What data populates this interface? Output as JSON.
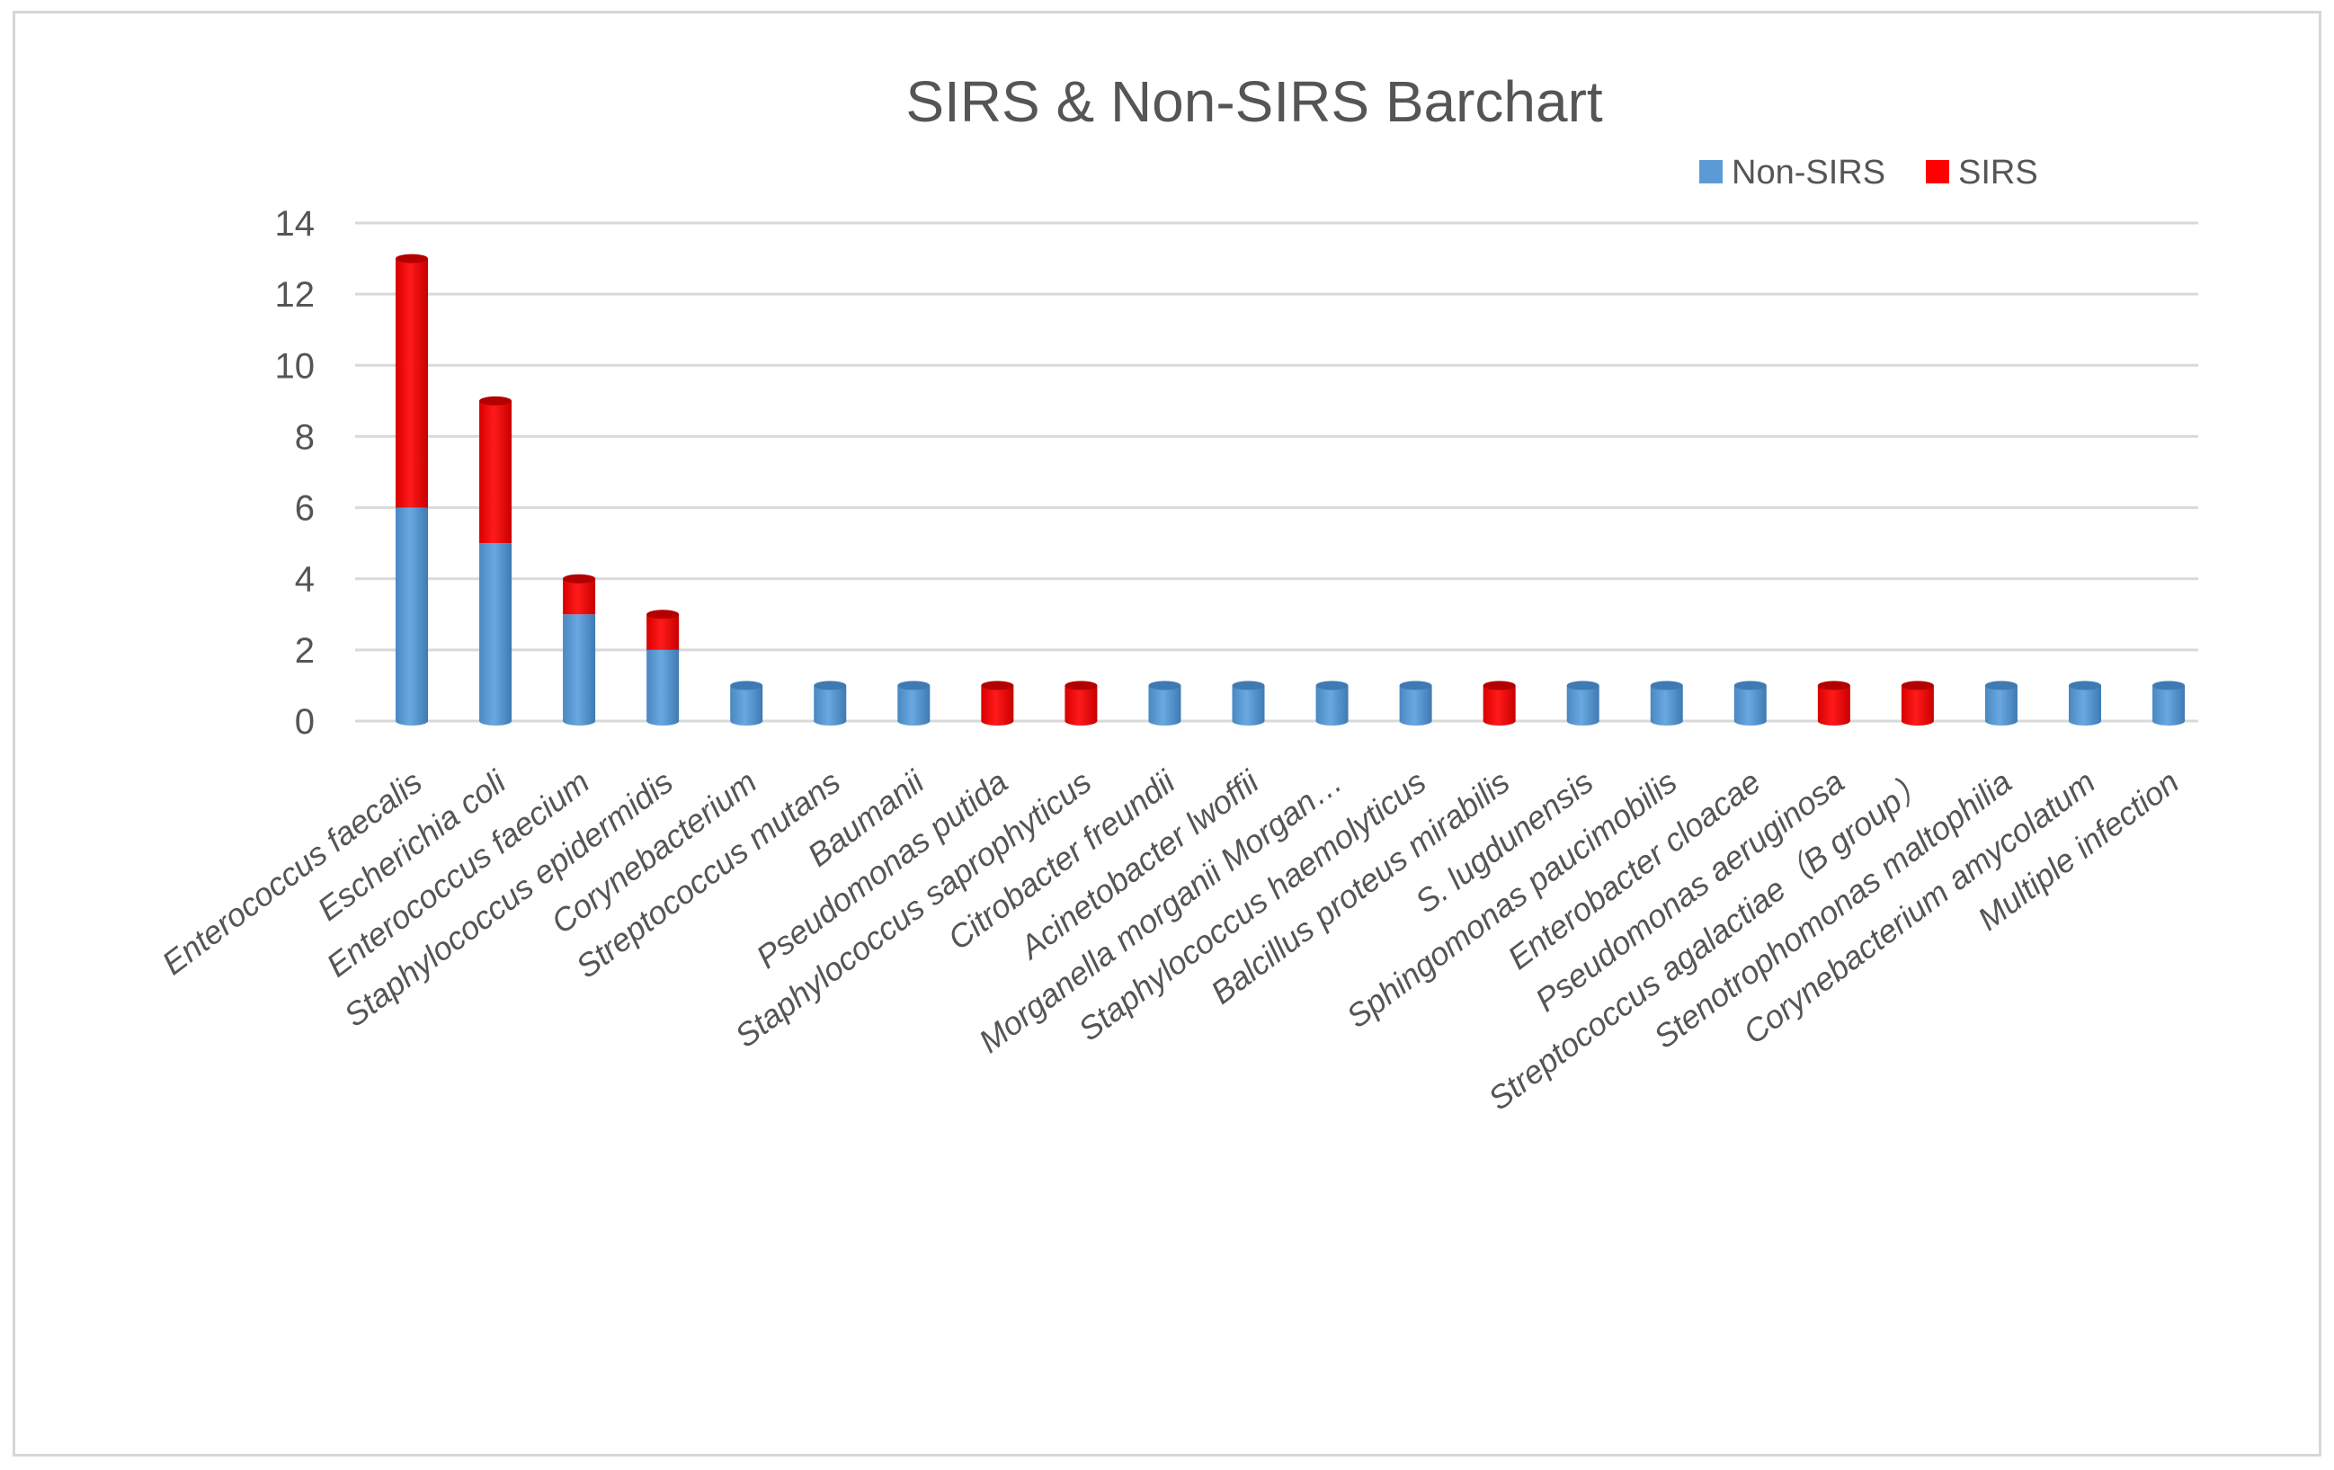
{
  "chart_data": {
    "type": "bar",
    "stacked": true,
    "title": "SIRS & Non-SIRS Barchart",
    "xlabel": "",
    "ylabel": "",
    "ylim": [
      0,
      14
    ],
    "yticks": [
      "0",
      "2",
      "4",
      "6",
      "8",
      "10",
      "12",
      "14"
    ],
    "grid": true,
    "legend_position": "top-right",
    "categories": [
      "Enterococcus faecalis",
      "Escherichia coli",
      "Enterococcus faecium",
      "Staphylococcus epidermidis",
      "Corynebacterium",
      "Streptococcus mutans",
      "Baumanii",
      "Pseudomonas putida",
      "Staphylococcus saprophyticus",
      "Citrobacter freundii",
      "Acinetobacter lwoffii",
      "Morganella morganii Morgan…",
      "Staphylococcus haemolyticus",
      "Balcillus proteus mirabilis",
      "S. lugdunensis",
      "Sphingomonas paucimobilis",
      "Enterobacter cloacae",
      "Pseudomonas aeruginosa",
      "Streptococcus agalactiae（B group）",
      "Stenotrophomonas maltophilia",
      "Corynebacterium amycolatum",
      "Multiple infection"
    ],
    "series": [
      {
        "name": "Non-SIRS",
        "color": "#5b9bd5",
        "values": [
          6,
          5,
          3,
          2,
          1,
          1,
          1,
          0,
          0,
          1,
          1,
          1,
          1,
          0,
          1,
          1,
          1,
          0,
          0,
          1,
          1,
          1
        ]
      },
      {
        "name": "SIRS",
        "color": "#ff0000",
        "values": [
          7,
          4,
          1,
          1,
          0,
          0,
          0,
          1,
          1,
          0,
          0,
          0,
          0,
          1,
          0,
          0,
          0,
          1,
          1,
          0,
          0,
          0
        ]
      }
    ]
  }
}
